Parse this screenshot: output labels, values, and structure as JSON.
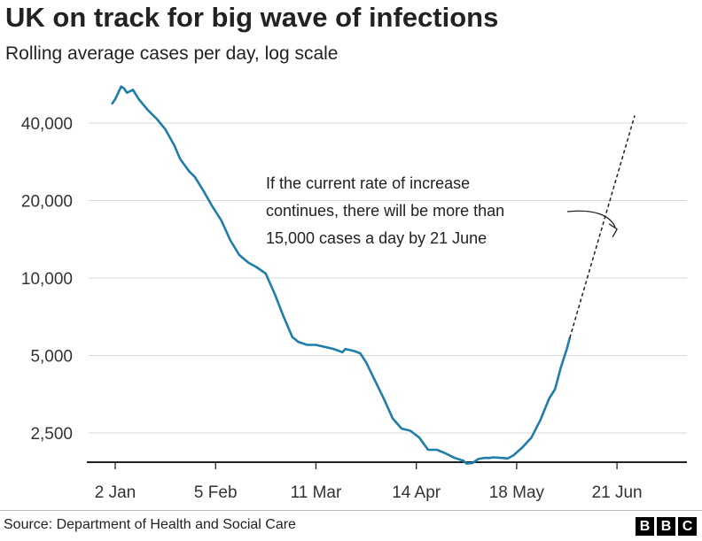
{
  "title": "UK on track for big wave of infections",
  "subtitle": "Rolling average cases per day, log scale",
  "source": "Source: Department of Health and Social Care",
  "logo": [
    "B",
    "B",
    "C"
  ],
  "colors": {
    "series": "#1f7ea8",
    "axis": "#222222",
    "grid": "#d9d9d9",
    "projection": "#222222"
  },
  "chart_data": {
    "type": "line",
    "y_scale": "log",
    "ylim": [
      2000,
      60000
    ],
    "y_ticks": [
      {
        "value": 40000,
        "label": "40,000"
      },
      {
        "value": 20000,
        "label": "20,000"
      },
      {
        "value": 10000,
        "label": "10,000"
      },
      {
        "value": 5000,
        "label": "5,000"
      },
      {
        "value": 2500,
        "label": "2,500"
      }
    ],
    "x_ticks": [
      {
        "date": "2021-01-02",
        "label": "2 Jan"
      },
      {
        "date": "2021-02-05",
        "label": "5 Feb"
      },
      {
        "date": "2021-03-11",
        "label": "11 Mar"
      },
      {
        "date": "2021-04-14",
        "label": "14 Apr"
      },
      {
        "date": "2021-05-18",
        "label": "18 May"
      },
      {
        "date": "2021-06-21",
        "label": "21 Jun"
      }
    ],
    "grid": true,
    "series": [
      {
        "points": [
          [
            "2021-01-01",
            47700
          ],
          [
            "2021-01-02",
            49500
          ],
          [
            "2021-01-04",
            55500
          ],
          [
            "2021-01-05",
            54500
          ],
          [
            "2021-01-06",
            52500
          ],
          [
            "2021-01-08",
            53900
          ],
          [
            "2021-01-10",
            49500
          ],
          [
            "2021-01-13",
            45000
          ],
          [
            "2021-01-16",
            41600
          ],
          [
            "2021-01-19",
            37800
          ],
          [
            "2021-01-22",
            32800
          ],
          [
            "2021-01-24",
            29000
          ],
          [
            "2021-01-27",
            26000
          ],
          [
            "2021-01-29",
            24700
          ],
          [
            "2021-02-01",
            21700
          ],
          [
            "2021-02-04",
            18900
          ],
          [
            "2021-02-07",
            16700
          ],
          [
            "2021-02-10",
            14000
          ],
          [
            "2021-02-13",
            12300
          ],
          [
            "2021-02-16",
            11500
          ],
          [
            "2021-02-19",
            11000
          ],
          [
            "2021-02-22",
            10400
          ],
          [
            "2021-02-25",
            8700
          ],
          [
            "2021-02-28",
            7100
          ],
          [
            "2021-03-03",
            5900
          ],
          [
            "2021-03-05",
            5650
          ],
          [
            "2021-03-08",
            5500
          ],
          [
            "2021-03-11",
            5500
          ],
          [
            "2021-03-14",
            5400
          ],
          [
            "2021-03-17",
            5300
          ],
          [
            "2021-03-20",
            5150
          ],
          [
            "2021-03-21",
            5300
          ],
          [
            "2021-03-24",
            5200
          ],
          [
            "2021-03-26",
            5100
          ],
          [
            "2021-03-28",
            4700
          ],
          [
            "2021-03-31",
            4000
          ],
          [
            "2021-04-03",
            3400
          ],
          [
            "2021-04-06",
            2850
          ],
          [
            "2021-04-09",
            2600
          ],
          [
            "2021-04-12",
            2550
          ],
          [
            "2021-04-15",
            2400
          ],
          [
            "2021-04-18",
            2150
          ],
          [
            "2021-04-21",
            2150
          ],
          [
            "2021-04-24",
            2080
          ],
          [
            "2021-04-27",
            2000
          ],
          [
            "2021-04-30",
            1950
          ],
          [
            "2021-05-01",
            1900
          ],
          [
            "2021-05-03",
            1910
          ],
          [
            "2021-05-05",
            1980
          ],
          [
            "2021-05-07",
            2000
          ],
          [
            "2021-05-09",
            2000
          ],
          [
            "2021-05-10",
            2010
          ],
          [
            "2021-05-13",
            2000
          ],
          [
            "2021-05-15",
            1990
          ],
          [
            "2021-05-17",
            2050
          ],
          [
            "2021-05-20",
            2200
          ],
          [
            "2021-05-23",
            2400
          ],
          [
            "2021-05-26",
            2800
          ],
          [
            "2021-05-29",
            3400
          ],
          [
            "2021-05-31",
            3700
          ],
          [
            "2021-06-02",
            4500
          ],
          [
            "2021-06-04",
            5300
          ],
          [
            "2021-06-05",
            5850
          ]
        ]
      }
    ],
    "projection": {
      "from": [
        "2021-06-05",
        5850
      ],
      "to": [
        "2021-06-27",
        42800
      ],
      "style": "dashed"
    },
    "annotation": {
      "lines": [
        "If the current rate of increase",
        "continues, there will be more than",
        "15,000 cases a day by 21 June"
      ],
      "arrow_to": [
        "2021-06-21",
        15000
      ]
    }
  }
}
